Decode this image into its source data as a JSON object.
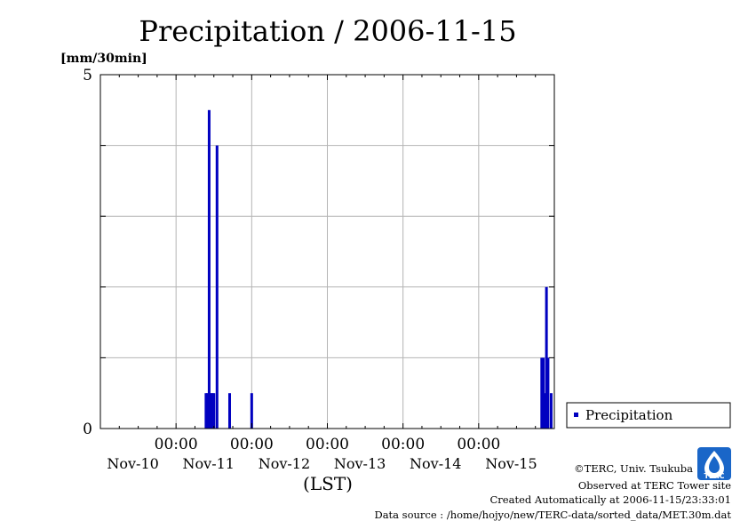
{
  "chart_data": {
    "type": "bar",
    "title": "Precipitation / 2006-11-15",
    "ylabel": "[mm/30min]",
    "xlabel": "(LST)",
    "ylim": [
      0,
      5
    ],
    "y_tick_labels": [
      "0",
      "5"
    ],
    "xlim": [
      "2006-11-10 00:00",
      "2006-11-16 00:00"
    ],
    "x_time_labels": [
      "00:00",
      "00:00",
      "00:00",
      "00:00",
      "00:00"
    ],
    "x_date_labels": [
      "Nov-10",
      "Nov-11",
      "Nov-12",
      "Nov-13",
      "Nov-14",
      "Nov-15"
    ],
    "grid": true,
    "legend_position": "right",
    "color": "#0000c0",
    "series": [
      {
        "name": "Precipitation",
        "x": [
          "2006-11-11 09:30",
          "2006-11-11 10:00",
          "2006-11-11 10:30",
          "2006-11-11 11:00",
          "2006-11-11 11:30",
          "2006-11-11 12:00",
          "2006-11-11 13:00",
          "2006-11-11 17:00",
          "2006-11-12 00:00",
          "2006-11-15 20:00",
          "2006-11-15 20:30",
          "2006-11-15 21:00",
          "2006-11-15 21:30",
          "2006-11-15 22:00",
          "2006-11-15 23:00"
        ],
        "values": [
          0.5,
          0.5,
          4.5,
          0.5,
          0.5,
          0.5,
          4.0,
          0.5,
          0.5,
          1.0,
          1.0,
          0.5,
          2.0,
          1.0,
          0.5
        ]
      }
    ]
  },
  "footer": {
    "copyright": "©TERC, Univ. Tsukuba",
    "observed": "Observed at TERC Tower site",
    "created": "Created Automatically at 2006-11-15/23:33:01",
    "source": "Data source : /home/hojyo/new/TERC-data/sorted_data/MET.30m.dat"
  },
  "logo": {
    "text": "TERC"
  }
}
